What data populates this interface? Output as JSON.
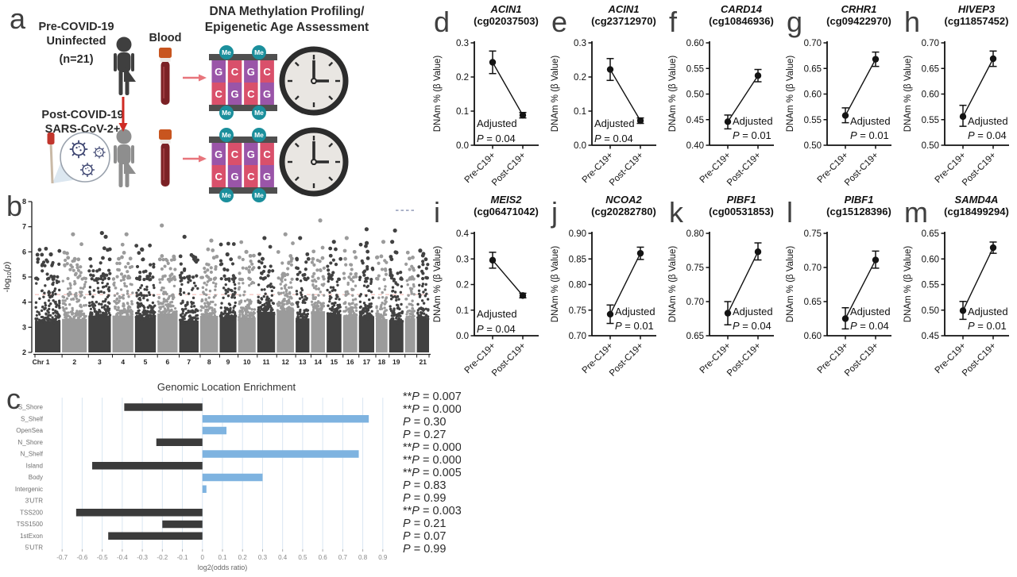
{
  "panel_a": {
    "letter": "a",
    "pre_group": {
      "line1": "Pre-COVID-19",
      "line2": "Uninfected",
      "n": "(n=21)"
    },
    "post_group": {
      "line1": "Post-COVID-19",
      "line2": "SARS-CoV-2+"
    },
    "blood_label": "Blood",
    "assay_line1": "DNA Methylation Profiling/",
    "assay_line2": "Epigenetic Age Assessment",
    "dna_icon": {
      "me": "Me",
      "top_letters": [
        "G",
        "C",
        "G",
        "C"
      ],
      "bottom_letters": [
        "C",
        "G",
        "C",
        "G"
      ]
    },
    "colors": {
      "person_pre": "#3f3f3f",
      "person_post": "#8e8e8e",
      "tube_body": "#7b2125",
      "tube_cap": "#c8551f",
      "me_circle": "#1b8f9c",
      "base_g": "#9a55a8",
      "base_c": "#d9506b",
      "dna_bar": "#4f4f4f",
      "arrow_red": "#cf2b24",
      "arrow_pink": "#e8757c",
      "virus": "#3c4470",
      "clock_ring": "#2c2c2c",
      "clock_face": "#e9e6e2"
    }
  },
  "chart_data": [
    {
      "id": "b",
      "type": "manhattan",
      "letter": "b",
      "ylabel": "-log10(p)",
      "ylim": [
        2,
        8
      ],
      "yticks": [
        2,
        3,
        4,
        5,
        6,
        7,
        8
      ],
      "x_prefix": "Chr",
      "chromosomes": [
        {
          "label": "1",
          "weight": 1.0
        },
        {
          "label": "2",
          "weight": 0.97
        },
        {
          "label": "3",
          "weight": 0.88
        },
        {
          "label": "4",
          "weight": 0.82
        },
        {
          "label": "5",
          "weight": 0.82
        },
        {
          "label": "6",
          "weight": 0.79
        },
        {
          "label": "7",
          "weight": 0.76
        },
        {
          "label": "8",
          "weight": 0.7
        },
        {
          "label": "9",
          "weight": 0.66
        },
        {
          "label": "10",
          "weight": 0.69
        },
        {
          "label": "11",
          "weight": 0.7
        },
        {
          "label": "12",
          "weight": 0.68
        },
        {
          "label": "13",
          "weight": 0.54
        },
        {
          "label": "14",
          "weight": 0.55
        },
        {
          "label": "15",
          "weight": 0.58
        },
        {
          "label": "16",
          "weight": 0.56
        },
        {
          "label": "17",
          "weight": 0.6
        },
        {
          "label": "18",
          "weight": 0.46
        },
        {
          "label": "19",
          "weight": 0.56
        },
        {
          "label": "",
          "weight": 0.4
        },
        {
          "label": "21",
          "weight": 0.48
        }
      ],
      "significance_line": {
        "y": 4.3,
        "color": "#f4b3ad"
      },
      "reference_dash": {
        "y": 7.65,
        "color": "#9aa3bd"
      },
      "notable_peaks": [
        {
          "chr": "1",
          "y": 5.9
        },
        {
          "chr": "2",
          "y": 6.7
        },
        {
          "chr": "3",
          "y": 6.75
        },
        {
          "chr": "3",
          "y": 6.6
        },
        {
          "chr": "4",
          "y": 6.7
        },
        {
          "chr": "5",
          "y": 6.1
        },
        {
          "chr": "6",
          "y": 7.05
        },
        {
          "chr": "7",
          "y": 6.6
        },
        {
          "chr": "8",
          "y": 6.45
        },
        {
          "chr": "9",
          "y": 5.9
        },
        {
          "chr": "10",
          "y": 6.0
        },
        {
          "chr": "11",
          "y": 6.55
        },
        {
          "chr": "12",
          "y": 6.7
        },
        {
          "chr": "13",
          "y": 6.55
        },
        {
          "chr": "14",
          "y": 7.25
        },
        {
          "chr": "15",
          "y": 6.4
        },
        {
          "chr": "16",
          "y": 6.55
        },
        {
          "chr": "17",
          "y": 6.9
        },
        {
          "chr": "17",
          "y": 6.35
        },
        {
          "chr": "18",
          "y": 6.4
        },
        {
          "chr": "19",
          "y": 6.85
        },
        {
          "chr": "19",
          "y": 6.4
        },
        {
          "chr": "21",
          "y": 6.05
        }
      ],
      "colors": {
        "dark": "#414141",
        "light": "#9b9b9b"
      }
    },
    {
      "id": "c",
      "type": "bar-horizontal",
      "letter": "c",
      "title": "Genomic Location Enrichment",
      "xlabel": "log2(odds ratio)",
      "xlim": [
        -0.78,
        0.98
      ],
      "xticks": [
        -0.7,
        -0.6,
        -0.5,
        -0.4,
        -0.3,
        -0.2,
        -0.1,
        0,
        0.1,
        0.2,
        0.3,
        0.4,
        0.5,
        0.6,
        0.7,
        0.8,
        0.9
      ],
      "categories": [
        "S_Shore",
        "S_Shelf",
        "OpenSea",
        "N_Shore",
        "N_Shelf",
        "Island",
        "Body",
        "Intergenic",
        "3'UTR",
        "TSS200",
        "TSS1500",
        "1stExon",
        "5'UTR"
      ],
      "values": [
        -0.39,
        0.83,
        0.12,
        -0.23,
        0.78,
        -0.55,
        0.3,
        0.02,
        0,
        -0.63,
        -0.2,
        -0.47,
        0
      ],
      "pvalues": [
        {
          "stars": "**",
          "value": "0.007"
        },
        {
          "stars": "**",
          "value": "0.0001"
        },
        {
          "stars": "",
          "value": "0.30"
        },
        {
          "stars": "",
          "value": "0.27"
        },
        {
          "stars": "**",
          "value": "0.0004"
        },
        {
          "stars": "**",
          "value": "0.0004"
        },
        {
          "stars": "**",
          "value": "0.005"
        },
        {
          "stars": "",
          "value": "0.83"
        },
        {
          "stars": "",
          "value": "0.99"
        },
        {
          "stars": "**",
          "value": "0.003"
        },
        {
          "stars": "",
          "value": "0.21"
        },
        {
          "stars": "",
          "value": "0.07"
        },
        {
          "stars": "",
          "value": "0.99"
        }
      ],
      "p_prefix": "P",
      "p_eq": " = ",
      "colors": {
        "positive": "#7eb3e0",
        "negative": "#3b3b3b",
        "grid": "#d9e6f2"
      }
    },
    {
      "id": "d",
      "type": "dot-line",
      "letter": "d",
      "gene": "ACIN1",
      "probe": "(cg02037503)",
      "ylabel": "DNAm % (β Value)",
      "ylim": [
        0,
        0.3
      ],
      "yticks": [
        0,
        0.1,
        0.2,
        0.3
      ],
      "ydecimals": 1,
      "categories": [
        "Pre-C19+",
        "Post-C19+"
      ],
      "points": [
        {
          "y": 0.243,
          "lo": 0.21,
          "hi": 0.276
        },
        {
          "y": 0.088,
          "lo": 0.08,
          "hi": 0.096
        }
      ],
      "adjusted_label": "Adjusted",
      "p_prefix": "P",
      "p_value": "0.04"
    },
    {
      "id": "e",
      "type": "dot-line",
      "letter": "e",
      "gene": "ACIN1",
      "probe": "(cg23712970)",
      "ylabel": "DNAm % (β Value)",
      "ylim": [
        0,
        0.3
      ],
      "yticks": [
        0,
        0.1,
        0.2,
        0.3
      ],
      "ydecimals": 1,
      "categories": [
        "Pre-C19+",
        "Post-C19+"
      ],
      "points": [
        {
          "y": 0.222,
          "lo": 0.19,
          "hi": 0.254
        },
        {
          "y": 0.072,
          "lo": 0.064,
          "hi": 0.08
        }
      ],
      "adjusted_label": "Adjusted",
      "p_prefix": "P",
      "p_value": "0.04"
    },
    {
      "id": "f",
      "type": "dot-line",
      "letter": "f",
      "gene": "CARD14",
      "probe": "(cg10846936)",
      "ylabel": "DNAm % (β Value)",
      "ylim": [
        0.4,
        0.6
      ],
      "yticks": [
        0.4,
        0.45,
        0.5,
        0.55,
        0.6
      ],
      "ydecimals": 2,
      "categories": [
        "Pre-C19+",
        "Post-C19+"
      ],
      "points": [
        {
          "y": 0.446,
          "lo": 0.432,
          "hi": 0.459
        },
        {
          "y": 0.536,
          "lo": 0.524,
          "hi": 0.548
        }
      ],
      "adjusted_label": "Adjusted",
      "p_prefix": "P",
      "p_value": "0.01"
    },
    {
      "id": "g",
      "type": "dot-line",
      "letter": "g",
      "gene": "CRHR1",
      "probe": "(cg09422970)",
      "ylabel": "DNAm % (β Value)",
      "ylim": [
        0.5,
        0.7
      ],
      "yticks": [
        0.5,
        0.55,
        0.6,
        0.65,
        0.7
      ],
      "ydecimals": 2,
      "categories": [
        "Pre-C19+",
        "Post-C19+"
      ],
      "points": [
        {
          "y": 0.558,
          "lo": 0.544,
          "hi": 0.573
        },
        {
          "y": 0.668,
          "lo": 0.654,
          "hi": 0.682
        }
      ],
      "adjusted_label": "Adjusted",
      "p_prefix": "P",
      "p_value": "0.01"
    },
    {
      "id": "h",
      "type": "dot-line",
      "letter": "h",
      "gene": "HIVEP3",
      "probe": "(cg11857452)",
      "ylabel": "DNAm % (β Value)",
      "ylim": [
        0.5,
        0.7
      ],
      "yticks": [
        0.5,
        0.55,
        0.6,
        0.65,
        0.7
      ],
      "ydecimals": 2,
      "categories": [
        "Pre-C19+",
        "Post-C19+"
      ],
      "points": [
        {
          "y": 0.556,
          "lo": 0.537,
          "hi": 0.578
        },
        {
          "y": 0.669,
          "lo": 0.654,
          "hi": 0.684
        }
      ],
      "adjusted_label": "Adjusted",
      "p_prefix": "P",
      "p_value": "0.04"
    },
    {
      "id": "i",
      "type": "dot-line",
      "letter": "i",
      "gene": "MEIS2",
      "probe": "(cg06471042)",
      "ylabel": "DNAm % (β Value)",
      "ylim": [
        0,
        0.4
      ],
      "yticks": [
        0,
        0.1,
        0.2,
        0.3,
        0.4
      ],
      "ydecimals": 1,
      "categories": [
        "Pre-C19+",
        "Post-C19+"
      ],
      "points": [
        {
          "y": 0.295,
          "lo": 0.264,
          "hi": 0.326
        },
        {
          "y": 0.157,
          "lo": 0.148,
          "hi": 0.166
        }
      ],
      "adjusted_label": "Adjusted",
      "p_prefix": "P",
      "p_value": "0.04"
    },
    {
      "id": "j",
      "type": "dot-line",
      "letter": "j",
      "gene": "NCOA2",
      "probe": "(cg20282780)",
      "ylabel": "DNAm % (β Value)",
      "ylim": [
        0.7,
        0.9
      ],
      "yticks": [
        0.7,
        0.75,
        0.8,
        0.85,
        0.9
      ],
      "ydecimals": 2,
      "categories": [
        "Pre-C19+",
        "Post-C19+"
      ],
      "points": [
        {
          "y": 0.742,
          "lo": 0.724,
          "hi": 0.76
        },
        {
          "y": 0.861,
          "lo": 0.849,
          "hi": 0.873
        }
      ],
      "adjusted_label": "Adjusted",
      "p_prefix": "P",
      "p_value": "0.01"
    },
    {
      "id": "k",
      "type": "dot-line",
      "letter": "k",
      "gene": "PIBF1",
      "probe": "(cg00531853)",
      "ylabel": "DNAm % (β Value)",
      "ylim": [
        0.65,
        0.8
      ],
      "yticks": [
        0.65,
        0.7,
        0.75,
        0.8
      ],
      "ydecimals": 2,
      "categories": [
        "Pre-C19+",
        "Post-C19+"
      ],
      "points": [
        {
          "y": 0.683,
          "lo": 0.666,
          "hi": 0.7
        },
        {
          "y": 0.773,
          "lo": 0.761,
          "hi": 0.786
        }
      ],
      "adjusted_label": "Adjusted",
      "p_prefix": "P",
      "p_value": "0.04"
    },
    {
      "id": "l",
      "type": "dot-line",
      "letter": "l",
      "gene": "PIBF1",
      "probe": "(cg15128396)",
      "ylabel": "DNAm % (β Value)",
      "ylim": [
        0.6,
        0.75
      ],
      "yticks": [
        0.6,
        0.65,
        0.7,
        0.75
      ],
      "ydecimals": 2,
      "categories": [
        "Pre-C19+",
        "Post-C19+"
      ],
      "points": [
        {
          "y": 0.625,
          "lo": 0.61,
          "hi": 0.641
        },
        {
          "y": 0.711,
          "lo": 0.699,
          "hi": 0.724
        }
      ],
      "adjusted_label": "Adjusted",
      "p_prefix": "P",
      "p_value": "0.04"
    },
    {
      "id": "m",
      "type": "dot-line",
      "letter": "m",
      "gene": "SAMD4A",
      "probe": "(cg18499294)",
      "ylabel": "DNAm % (β Value)",
      "ylim": [
        0.45,
        0.65
      ],
      "yticks": [
        0.45,
        0.5,
        0.55,
        0.6,
        0.65
      ],
      "ydecimals": 2,
      "categories": [
        "Pre-C19+",
        "Post-C19+"
      ],
      "points": [
        {
          "y": 0.499,
          "lo": 0.482,
          "hi": 0.517
        },
        {
          "y": 0.622,
          "lo": 0.611,
          "hi": 0.633
        }
      ],
      "adjusted_label": "Adjusted",
      "p_prefix": "P",
      "p_value": "0.01"
    }
  ]
}
